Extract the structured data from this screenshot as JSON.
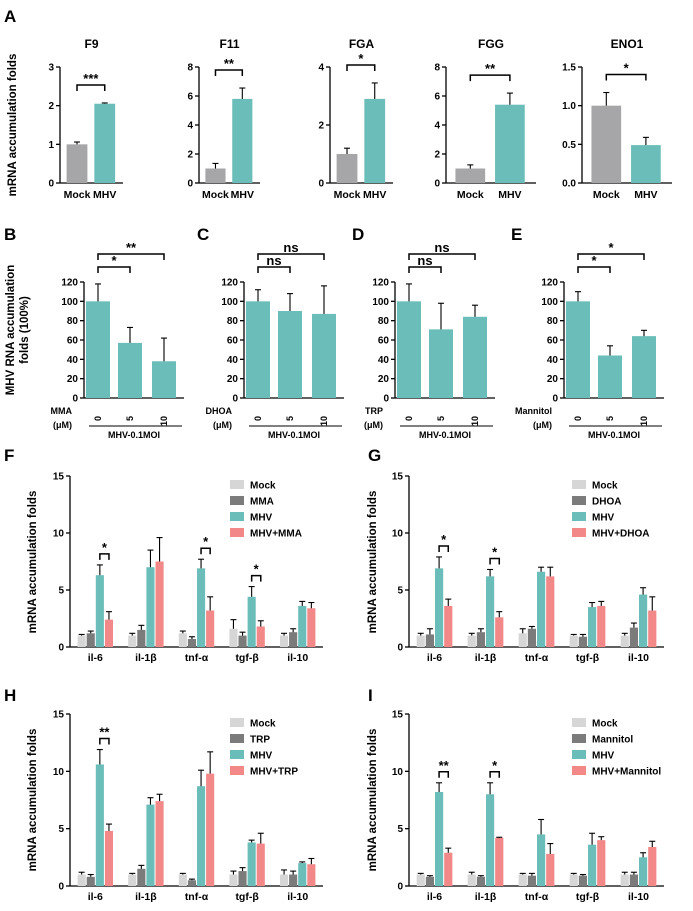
{
  "colors": {
    "mock": "#a6a6a8",
    "mhv": "#6bbdb9",
    "ctrl": "#d6d6d6",
    "treat": "#7b7b7b",
    "combo": "#f28888"
  },
  "chart_data": [
    {
      "id": "A1",
      "panel_label": "A",
      "type": "bar",
      "title": "F9",
      "ylabel": "mRNA accumulation folds",
      "categories": [
        "Mock",
        "MHV"
      ],
      "values": [
        1.0,
        2.05
      ],
      "errors": [
        0.06,
        0.02
      ],
      "ylim": [
        0,
        3
      ],
      "yticks": [
        "0",
        "1",
        "2",
        "3"
      ],
      "sig": [
        {
          "a": 0,
          "b": 1,
          "label": "***"
        }
      ]
    },
    {
      "id": "A2",
      "type": "bar",
      "title": "F11",
      "categories": [
        "Mock",
        "MHV"
      ],
      "values": [
        1.0,
        5.8
      ],
      "errors": [
        0.35,
        0.75
      ],
      "ylim": [
        0,
        8
      ],
      "yticks": [
        "0",
        "2",
        "4",
        "6",
        "8"
      ],
      "sig": [
        {
          "a": 0,
          "b": 1,
          "label": "**"
        }
      ]
    },
    {
      "id": "A3",
      "type": "bar",
      "title": "FGA",
      "categories": [
        "Mock",
        "MHV"
      ],
      "values": [
        1.0,
        2.9
      ],
      "errors": [
        0.2,
        0.55
      ],
      "ylim": [
        0,
        4
      ],
      "yticks": [
        "0",
        "2",
        "4"
      ],
      "sig": [
        {
          "a": 0,
          "b": 1,
          "label": "*"
        }
      ]
    },
    {
      "id": "A4",
      "type": "bar",
      "title": "FGG",
      "categories": [
        "Mock",
        "MHV"
      ],
      "values": [
        1.0,
        5.4
      ],
      "errors": [
        0.25,
        0.8
      ],
      "ylim": [
        0,
        8
      ],
      "yticks": [
        "0",
        "2",
        "4",
        "6",
        "8"
      ],
      "sig": [
        {
          "a": 0,
          "b": 1,
          "label": "**"
        }
      ]
    },
    {
      "id": "A5",
      "type": "bar",
      "title": "ENO1",
      "categories": [
        "Mock",
        "MHV"
      ],
      "values": [
        1.0,
        0.49
      ],
      "errors": [
        0.17,
        0.1
      ],
      "ylim": [
        0,
        1.5
      ],
      "yticks": [
        "0.0",
        "0.5",
        "1.0",
        "1.5"
      ],
      "sig": [
        {
          "a": 0,
          "b": 1,
          "label": "*"
        }
      ]
    },
    {
      "id": "B",
      "panel_label": "B",
      "type": "bar",
      "ylabel": [
        "MHV RNA accumulation",
        "folds (100%)"
      ],
      "dose_name": "MMA",
      "group_label": "MHV-0.1MOI",
      "categories": [
        "0",
        "5",
        "10"
      ],
      "values": [
        100,
        57,
        38
      ],
      "errors": [
        18,
        16,
        24
      ],
      "ylim": [
        0,
        120
      ],
      "yticks": [
        "0",
        "20",
        "40",
        "60",
        "80",
        "100",
        "120"
      ],
      "sig": [
        {
          "a": 0,
          "b": 1,
          "label": "*"
        },
        {
          "a": 0,
          "b": 2,
          "label": "**"
        }
      ]
    },
    {
      "id": "C",
      "panel_label": "C",
      "type": "bar",
      "dose_name": "DHOA",
      "group_label": "MHV-0.1MOI",
      "categories": [
        "0",
        "5",
        "10"
      ],
      "values": [
        100,
        90,
        87
      ],
      "errors": [
        12,
        18,
        29
      ],
      "ylim": [
        0,
        120
      ],
      "yticks": [
        "0",
        "20",
        "40",
        "60",
        "80",
        "100",
        "120"
      ],
      "sig": [
        {
          "a": 0,
          "b": 1,
          "label": "ns"
        },
        {
          "a": 0,
          "b": 2,
          "label": "ns"
        }
      ]
    },
    {
      "id": "D",
      "panel_label": "D",
      "type": "bar",
      "dose_name": "TRP",
      "group_label": "MHV-0.1MOI",
      "categories": [
        "0",
        "5",
        "10"
      ],
      "values": [
        100,
        71,
        84
      ],
      "errors": [
        18,
        27,
        12
      ],
      "ylim": [
        0,
        120
      ],
      "yticks": [
        "0",
        "20",
        "40",
        "60",
        "80",
        "100",
        "120"
      ],
      "sig": [
        {
          "a": 0,
          "b": 1,
          "label": "ns"
        },
        {
          "a": 0,
          "b": 2,
          "label": "ns"
        }
      ]
    },
    {
      "id": "E",
      "panel_label": "E",
      "type": "bar",
      "dose_name": "Mannitol",
      "group_label": "MHV-0.1MOI",
      "categories": [
        "0",
        "5",
        "10"
      ],
      "values": [
        100,
        44,
        64
      ],
      "errors": [
        10,
        10,
        6
      ],
      "ylim": [
        0,
        120
      ],
      "yticks": [
        "0",
        "20",
        "40",
        "60",
        "80",
        "100",
        "120"
      ],
      "sig": [
        {
          "a": 0,
          "b": 1,
          "label": "*"
        },
        {
          "a": 0,
          "b": 2,
          "label": "*"
        }
      ]
    },
    {
      "id": "F",
      "panel_label": "F",
      "type": "bar",
      "ylabel": "mRNA accumulation folds",
      "categories": [
        "il-6",
        "il-1β",
        "tnf-α",
        "tgf-β",
        "il-10"
      ],
      "ylim": [
        0,
        15
      ],
      "yticks": [
        "0",
        "5",
        "10",
        "15"
      ],
      "series": [
        {
          "name": "Mock",
          "values": [
            1.0,
            1.0,
            1.2,
            1.6,
            1.0
          ],
          "errors": [
            0.1,
            0.2,
            0.2,
            0.8,
            0.2
          ]
        },
        {
          "name": "MMA",
          "values": [
            1.2,
            1.5,
            0.7,
            1.0,
            1.3
          ],
          "errors": [
            0.2,
            0.4,
            0.2,
            0.3,
            0.3
          ]
        },
        {
          "name": "MHV",
          "values": [
            6.3,
            7.0,
            6.9,
            4.4,
            3.6
          ],
          "errors": [
            0.9,
            1.5,
            0.8,
            0.9,
            0.4
          ]
        },
        {
          "name": "MHV+MMA",
          "values": [
            2.4,
            7.5,
            3.2,
            1.8,
            3.4
          ],
          "errors": [
            0.7,
            2.1,
            1.2,
            0.5,
            0.5
          ]
        }
      ],
      "sig": [
        {
          "cat": 0,
          "label": "*"
        },
        {
          "cat": 2,
          "label": "*"
        },
        {
          "cat": 3,
          "label": "*"
        }
      ]
    },
    {
      "id": "G",
      "panel_label": "G",
      "type": "bar",
      "ylabel": "mRNA accumulation folds",
      "categories": [
        "il-6",
        "il-1β",
        "tnf-α",
        "tgf-β",
        "il-10"
      ],
      "ylim": [
        0,
        15
      ],
      "yticks": [
        "0",
        "5",
        "10",
        "15"
      ],
      "series": [
        {
          "name": "Mock",
          "values": [
            1.0,
            1.0,
            1.2,
            1.0,
            1.0
          ],
          "errors": [
            0.2,
            0.2,
            0.4,
            0.1,
            0.2
          ]
        },
        {
          "name": "DHOA",
          "values": [
            1.1,
            1.3,
            1.6,
            0.9,
            1.7
          ],
          "errors": [
            0.5,
            0.3,
            0.2,
            0.2,
            0.4
          ]
        },
        {
          "name": "MHV",
          "values": [
            6.9,
            6.2,
            6.6,
            3.5,
            4.6
          ],
          "errors": [
            1.0,
            0.6,
            0.4,
            0.4,
            0.6
          ]
        },
        {
          "name": "MHV+DHOA",
          "values": [
            3.6,
            2.6,
            6.2,
            3.6,
            3.2
          ],
          "errors": [
            0.6,
            0.5,
            0.8,
            0.4,
            1.2
          ]
        }
      ],
      "sig": [
        {
          "cat": 0,
          "label": "*"
        },
        {
          "cat": 1,
          "label": "*"
        }
      ]
    },
    {
      "id": "H",
      "panel_label": "H",
      "type": "bar",
      "ylabel": "mRNA accumulation folds",
      "categories": [
        "il-6",
        "il-1β",
        "tnf-α",
        "tgf-β",
        "il-10"
      ],
      "ylim": [
        0,
        15
      ],
      "yticks": [
        "0",
        "5",
        "10",
        "15"
      ],
      "series": [
        {
          "name": "Mock",
          "values": [
            1.0,
            1.0,
            1.0,
            1.0,
            1.0
          ],
          "errors": [
            0.2,
            0.1,
            0.1,
            0.3,
            0.4
          ]
        },
        {
          "name": "TRP",
          "values": [
            0.8,
            1.5,
            0.5,
            1.3,
            1.0
          ],
          "errors": [
            0.2,
            0.3,
            0.1,
            0.3,
            0.3
          ]
        },
        {
          "name": "MHV",
          "values": [
            10.6,
            7.1,
            8.7,
            3.8,
            2.0
          ],
          "errors": [
            1.3,
            0.6,
            1.4,
            0.2,
            0.1
          ]
        },
        {
          "name": "MHV+TRP",
          "values": [
            4.8,
            7.4,
            9.8,
            3.7,
            1.9
          ],
          "errors": [
            0.6,
            0.6,
            1.9,
            0.9,
            0.5
          ]
        }
      ],
      "sig": [
        {
          "cat": 0,
          "label": "**"
        }
      ]
    },
    {
      "id": "I",
      "panel_label": "I",
      "type": "bar",
      "ylabel": "mRNA accumulation folds",
      "categories": [
        "il-6",
        "il-1β",
        "tnf-α",
        "tgf-β",
        "il-10"
      ],
      "ylim": [
        0,
        15
      ],
      "yticks": [
        "0",
        "5",
        "10",
        "15"
      ],
      "series": [
        {
          "name": "Mock",
          "values": [
            1.0,
            1.0,
            1.0,
            1.0,
            1.0
          ],
          "errors": [
            0.1,
            0.2,
            0.1,
            0.1,
            0.2
          ]
        },
        {
          "name": "Mannitol",
          "values": [
            0.8,
            0.8,
            0.9,
            0.9,
            1.0
          ],
          "errors": [
            0.1,
            0.1,
            0.2,
            0.1,
            0.2
          ]
        },
        {
          "name": "MHV",
          "values": [
            8.2,
            8.0,
            4.5,
            3.6,
            2.5
          ],
          "errors": [
            0.8,
            1.0,
            1.3,
            1.0,
            0.4
          ]
        },
        {
          "name": "MHV+Mannitol",
          "values": [
            2.9,
            4.2,
            2.8,
            4.0,
            3.4
          ],
          "errors": [
            0.4,
            0.05,
            0.9,
            0.3,
            0.5
          ]
        }
      ],
      "sig": [
        {
          "cat": 0,
          "label": "**"
        },
        {
          "cat": 1,
          "label": "*"
        }
      ]
    }
  ],
  "unit_label": "(μM)"
}
